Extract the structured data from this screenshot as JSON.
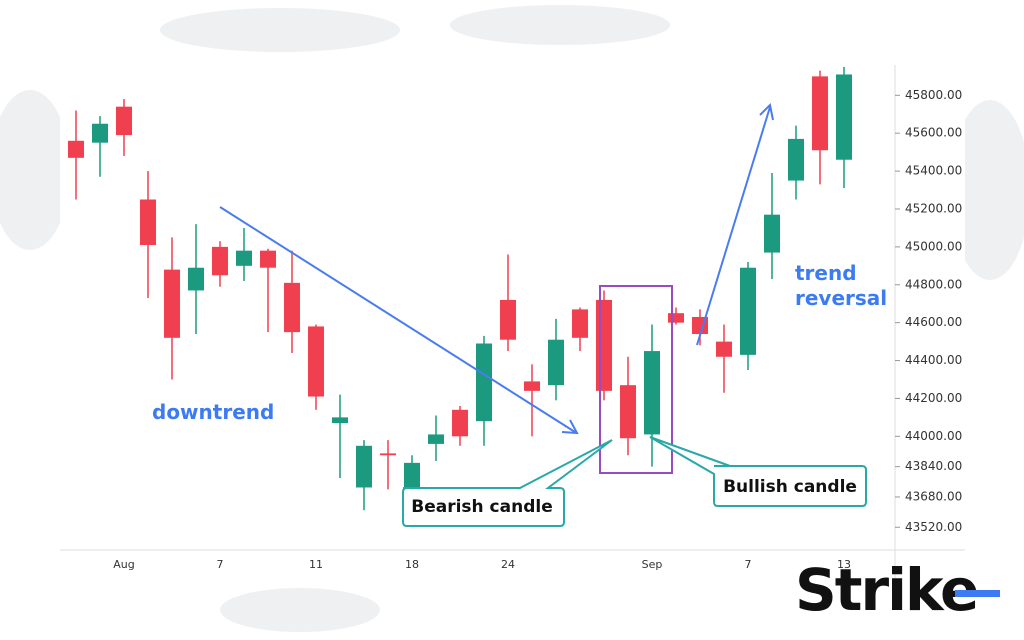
{
  "chart_data": {
    "type": "candlestick",
    "categories": [
      null,
      null,
      "Aug",
      null,
      null,
      null,
      "7",
      null,
      null,
      null,
      "11",
      null,
      null,
      null,
      "18",
      null,
      null,
      null,
      "24",
      null,
      null,
      null,
      null,
      null,
      "Sep",
      null,
      null,
      null,
      "7",
      null,
      null,
      null,
      "13"
    ],
    "open": [
      45560,
      45550,
      45740,
      45250,
      44880,
      44770,
      45000,
      44900,
      44980,
      44810,
      44580,
      44070,
      43730,
      43910,
      43670,
      43960,
      44140,
      44080,
      44720,
      44290,
      44270,
      44670,
      44720,
      44270,
      44010,
      44650,
      44630,
      44500,
      44430,
      44970,
      45350,
      45900,
      45460
    ],
    "high": [
      45720,
      45690,
      45780,
      45400,
      45050,
      45120,
      45030,
      45100,
      44990,
      44980,
      44590,
      44220,
      43980,
      43980,
      43900,
      44110,
      44160,
      44530,
      44960,
      44380,
      44620,
      44680,
      44770,
      44420,
      44590,
      44680,
      44670,
      44590,
      44920,
      45390,
      45640,
      45930,
      45950
    ],
    "low": [
      45250,
      45370,
      45480,
      44730,
      44300,
      44540,
      44790,
      44820,
      44550,
      44440,
      44140,
      43780,
      43610,
      43720,
      43660,
      43870,
      43950,
      43950,
      44450,
      44000,
      44190,
      44450,
      44190,
      43900,
      43840,
      44590,
      44480,
      44230,
      44350,
      44830,
      45250,
      45330,
      45310
    ],
    "close": [
      45470,
      45650,
      45590,
      45010,
      44520,
      44890,
      44850,
      44980,
      44890,
      44550,
      44210,
      44100,
      43950,
      43900,
      43860,
      44010,
      44000,
      44490,
      44510,
      44240,
      44510,
      44520,
      44240,
      43990,
      44450,
      44600,
      44540,
      44420,
      44890,
      45170,
      45570,
      45510,
      45910
    ],
    "up_color": "#1b9a80",
    "down_color": "#f0404f",
    "ylim": [
      43400,
      45960
    ],
    "yticks": [
      {
        "value": 43520,
        "label": "43520.00"
      },
      {
        "value": 43680,
        "label": "43680.00"
      },
      {
        "value": 43840,
        "label": "43840.00"
      },
      {
        "value": 44000,
        "label": "44000.00"
      },
      {
        "value": 44200,
        "label": "44200.00"
      },
      {
        "value": 44400,
        "label": "44400.00"
      },
      {
        "value": 44600,
        "label": "44600.00"
      },
      {
        "value": 44800,
        "label": "44800.00"
      },
      {
        "value": 45000,
        "label": "45000.00"
      },
      {
        "value": 45200,
        "label": "45200.00"
      },
      {
        "value": 45400,
        "label": "45400.00"
      },
      {
        "value": 45600,
        "label": "45600.00"
      },
      {
        "value": 45800,
        "label": "45800.00"
      }
    ],
    "annotations": {
      "downtrend": "downtrend",
      "reversal": [
        "trend",
        "reversal"
      ],
      "bearish": "Bearish candle",
      "bullish": "Bullish candle"
    },
    "logo": "Strike"
  }
}
